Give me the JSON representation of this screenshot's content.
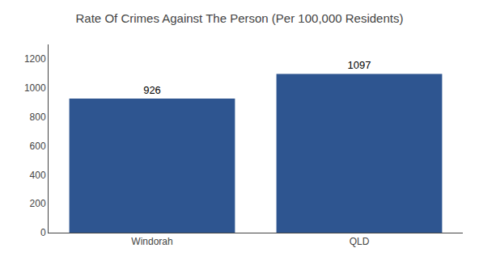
{
  "chart_data": {
    "type": "bar",
    "title": "Rate Of Crimes Against The Person (Per 100,000 Residents)",
    "categories": [
      "Windorah",
      "QLD"
    ],
    "values": [
      926,
      1097
    ],
    "colors": [
      "#2e5590",
      "#2e5590"
    ],
    "ylim": [
      0,
      1300
    ],
    "yticks": [
      0,
      200,
      400,
      600,
      800,
      1000,
      1200
    ],
    "grid": false,
    "data_labels": true
  }
}
